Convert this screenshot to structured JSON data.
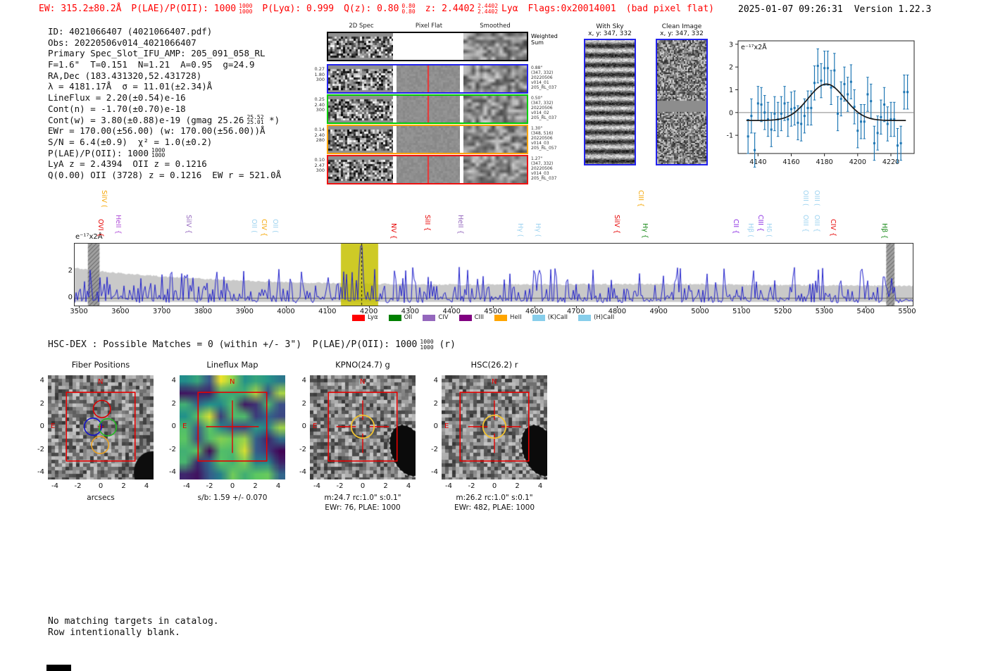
{
  "header": {
    "accent_color": "#ff0000",
    "ew": "EW: 315.2±80.2Å",
    "plae": {
      "label": "P(LAE)/P(OII): 1000",
      "hi": "1000",
      "lo": "1000"
    },
    "plya": "P(Lyα): 0.999",
    "qz": {
      "label": "Q(z): 0.80",
      "hi": "0.80",
      "lo": "0.80"
    },
    "z": {
      "label": "z: 2.4402",
      "hi": "2.4402",
      "lo": "2.4402",
      "suffix": "Lyα"
    },
    "flags": "Flags:0x20014001",
    "flag_note": "(bad pixel flat)",
    "timestamp": "2025-01-07 09:26:31",
    "version": "Version 1.22.3"
  },
  "info": {
    "lines": [
      {
        "text": "ID: 4021066407 (4021066407.pdf)"
      },
      {
        "text": "Obs: 20220506v014_4021066407"
      },
      {
        "text": "Primary Spec_Slot_IFU_AMP: 205_091_058_RL"
      },
      {
        "text": "F=1.6\"  T=0.151  N=1.21  A=0.95  g=24.9"
      },
      {
        "text": "RA,Dec (183.431320,52.431728)"
      },
      {
        "text": "λ = 4181.17Å  σ = 11.01(±2.34)Å"
      },
      {
        "text": "LineFlux = 2.20(±0.54)e-16"
      },
      {
        "text": "Cont(n) = -1.70(±0.70)e-18"
      },
      {
        "pre": "Cont(w) = 3.80(±0.88)e-19 (gmag 25.26",
        "hi": "25.52",
        "lo": "25.01",
        "post": " *)"
      },
      {
        "text": "EWr = 170.00(±56.00) (w: 170.00(±56.00))Å"
      },
      {
        "text": "S/N = 6.4(±0.9)  χ² = 1.0(±0.2)"
      },
      {
        "pre": "P(LAE)/P(OII): 1000",
        "hi": "1000",
        "lo": "1000",
        "post": ""
      },
      {
        "text": "LyA z = 2.4394  OII z = 0.1216"
      },
      {
        "text": "Q(0.00) OII (3728) z = 0.1216  EW r = 521.0Å"
      }
    ]
  },
  "spec2d": {
    "headers": [
      "2D Spec",
      "Pixel Flat",
      "Smoothed"
    ],
    "rows": [
      {
        "name": "weighted-sum",
        "color": "#000000",
        "left": [],
        "right": [
          "Weighted",
          "Sum"
        ],
        "red_line": false,
        "flat_white": true
      },
      {
        "name": "fiber-1",
        "color": "#2222ee",
        "left": [
          "0.27",
          "1.80",
          "300"
        ],
        "right": [
          "0.88\"",
          "(347, 332)",
          "20220506",
          "v014_01",
          "205_RL_037"
        ],
        "red_line": true,
        "flat_white": false
      },
      {
        "name": "fiber-2",
        "color": "#00cc00",
        "left": [
          "0.25",
          "2.40",
          "300"
        ],
        "right": [
          "0.50\"",
          "(347, 332)",
          "20220506",
          "v014_02",
          "205_RL_037"
        ],
        "red_line": true,
        "flat_white": false
      },
      {
        "name": "fiber-3",
        "color": "#ffa500",
        "left": [
          "0.14",
          "2.40",
          "280"
        ],
        "right": [
          "1.30\"",
          "(348, 516)",
          "20220506",
          "v014_03",
          "205_RL_057"
        ],
        "red_line": false,
        "flat_white": false
      },
      {
        "name": "fiber-4",
        "color": "#ee1111",
        "left": [
          "0.10",
          "2.47",
          "300"
        ],
        "right": [
          "1.27\"",
          "(347, 332)",
          "20220506",
          "v014_03",
          "205_RL_037"
        ],
        "red_line": true,
        "flat_white": false
      }
    ]
  },
  "sky_panels": [
    {
      "title": "With Sky",
      "subtitle": "x, y: 347, 332",
      "border": "#2222ee",
      "type": "stripes"
    },
    {
      "title": "Clean Image",
      "subtitle": "x, y: 347, 332",
      "border": "#2222ee",
      "type": "clean"
    }
  ],
  "hsc_dex": {
    "pre": "HSC-DEX : Possible Matches = 0 (within +/- 3\")  P(LAE)/P(OII): 1000",
    "hi": "1000",
    "lo": "1000",
    "post": " (r)"
  },
  "cutouts": {
    "xticks": [
      -4,
      -2,
      0,
      2,
      4
    ],
    "yticks": [
      4,
      2,
      0,
      -2,
      -4
    ],
    "compass_n": "N",
    "compass_e": "E",
    "aperture_color": "#f2c431",
    "box_color": "#e60000",
    "panels": [
      {
        "title": "Fiber Positions",
        "xlabel": "arcsecs",
        "captions": [],
        "type": "fibers",
        "fibers": [
          {
            "dx": 0.1,
            "dy": 1.55,
            "color": "#dd0000"
          },
          {
            "dx": -0.68,
            "dy": 0.0,
            "color": "#1111cc"
          },
          {
            "dx": 0.62,
            "dy": -0.05,
            "color": "#22bb22"
          },
          {
            "dx": -0.05,
            "dy": -1.6,
            "color": "#e8a020"
          }
        ]
      },
      {
        "title": "Lineflux Map",
        "xlabel": "",
        "captions": [
          "s/b: 1.59 +/- 0.070"
        ],
        "type": "viridis"
      },
      {
        "title": "KPNO(24.7) g",
        "xlabel": "",
        "captions": [
          "m:24.7 rc:1.0\"  s:0.1\"",
          "EWr: 76, PLAE: 1000"
        ],
        "type": "aperture"
      },
      {
        "title": "HSC(26.2) r",
        "xlabel": "",
        "captions": [
          "m:26.2 rc:1.0\"  s:0.1\"",
          "EWr: 482, PLAE: 1000"
        ],
        "type": "aperture"
      }
    ]
  },
  "footer": {
    "lines": [
      "No matching targets in catalog.",
      "Row intentionally blank."
    ]
  },
  "chart_data": [
    {
      "id": "line_fit_zoom",
      "type": "scatter",
      "title": "",
      "in_plot_label": "e⁻¹⁷x2Å",
      "xlim": [
        4128,
        4234
      ],
      "ylim": [
        -1.8,
        3.15
      ],
      "xticks": [
        4140,
        4160,
        4180,
        4200,
        4220
      ],
      "yticks": [
        -1,
        0,
        1,
        2,
        3
      ],
      "zero_line": true,
      "series": [
        {
          "name": "spectrum-points",
          "style": "errorbar",
          "color": "#1f77b4",
          "yerr": 0.75,
          "x": [
            4134,
            4136,
            4138,
            4140,
            4142,
            4144,
            4146,
            4148,
            4150,
            4152,
            4154,
            4156,
            4158,
            4160,
            4162,
            4164,
            4166,
            4168,
            4170,
            4172,
            4174,
            4176,
            4178,
            4180,
            4182,
            4184,
            4186,
            4188,
            4190,
            4192,
            4194,
            4196,
            4198,
            4200,
            4202,
            4204,
            4206,
            4208,
            4210,
            4212,
            4214,
            4216,
            4218,
            4220,
            4222,
            4224,
            4226,
            4228,
            4230
          ],
          "y": [
            -1.05,
            -0.15,
            -1.65,
            0.4,
            0.35,
            0.0,
            -0.3,
            -0.75,
            -0.05,
            -0.3,
            -0.05,
            0.4,
            -0.3,
            0.15,
            0.2,
            -0.45,
            -0.5,
            -0.15,
            0.2,
            0.2,
            1.3,
            2.05,
            1.4,
            1.95,
            1.95,
            1.1,
            1.85,
            -0.05,
            0.6,
            1.25,
            0.8,
            1.35,
            0.25,
            -0.8,
            -0.4,
            -0.4,
            0.8,
            0.5,
            -1.35,
            -0.9,
            -0.2,
            0.35,
            -0.5,
            -0.3,
            -0.3,
            -1.45,
            -1.35,
            0.9,
            0.9
          ]
        },
        {
          "name": "gaussian-fit",
          "style": "line",
          "color": "#1a1a1a",
          "params": {
            "center": 4181.17,
            "sigma": 11.01,
            "peak": 1.25,
            "baseline": -0.35
          }
        }
      ]
    },
    {
      "id": "full_spectrum",
      "type": "line",
      "in_plot_label": "e⁻¹⁷x2Å",
      "xlim": [
        3488,
        5512
      ],
      "ylim": [
        -0.55,
        4.08
      ],
      "xticks": [
        3500,
        3600,
        3700,
        3800,
        3900,
        4000,
        4100,
        4200,
        4300,
        4400,
        4500,
        4600,
        4700,
        4800,
        4900,
        5000,
        5100,
        5200,
        5300,
        5400,
        5500
      ],
      "yticks": [
        0,
        2
      ],
      "spectrum_color": "#2222cc",
      "error_band_color": "#c9c9c9",
      "detection": {
        "wavelength": 4181.17
      },
      "highlight_band": {
        "x0": 4131,
        "x1": 4221,
        "color": "rgba(197,193,0,0.85)"
      },
      "masked_bands": [
        {
          "x0": 3520,
          "x1": 3548
        },
        {
          "x0": 5448,
          "x1": 5468
        }
      ],
      "series_note": "noisy blue flux spectrum with gray 1-sigma envelope; emission line detected at 4181.17 Å",
      "legend": [
        {
          "label": "Lyα",
          "color": "#ff0000"
        },
        {
          "label": "OII",
          "color": "#008000"
        },
        {
          "label": "CIV",
          "color": "#9467bd"
        },
        {
          "label": "CIII",
          "color": "#800080"
        },
        {
          "label": "HeII",
          "color": "#ffa500"
        },
        {
          "label": "(K)CaII",
          "color": "#87ceeb"
        },
        {
          "label": "(H)CaII",
          "color": "#87ceeb"
        }
      ],
      "line_labels": [
        {
          "wl": 3553,
          "text": "OVI {",
          "color": "#e60000",
          "tier": 0
        },
        {
          "wl": 3561,
          "text": "SiIV (",
          "color": "#f5a500",
          "tier": 1
        },
        {
          "wl": 3595,
          "text": "HeII {",
          "color": "#b04fd8",
          "tier": 0
        },
        {
          "wl": 3765,
          "text": "SiIV {",
          "color": "#9467bd",
          "tier": 0
        },
        {
          "wl": 3924,
          "text": "OII (",
          "color": "#9ed3f0",
          "tier": 0
        },
        {
          "wl": 3948,
          "text": "CIV {",
          "color": "#f5a500",
          "tier": 0
        },
        {
          "wl": 3974,
          "text": "OII (",
          "color": "#9ed3f0",
          "tier": 0
        },
        {
          "wl": 4261,
          "text": "NV {",
          "color": "#e60000",
          "tier": 0
        },
        {
          "wl": 4342,
          "text": "SiII {",
          "color": "#e60000",
          "tier": 0
        },
        {
          "wl": 4422,
          "text": "HeII {",
          "color": "#9467bd",
          "tier": 0
        },
        {
          "wl": 4566,
          "text": "Hγ (",
          "color": "#9ed3f0",
          "tier": 0
        },
        {
          "wl": 4609,
          "text": "Hγ (",
          "color": "#9ed3f0",
          "tier": 0
        },
        {
          "wl": 4799,
          "text": "SiIV {",
          "color": "#e60000",
          "tier": 0
        },
        {
          "wl": 4858,
          "text": "CIII {",
          "color": "#f5a500",
          "tier": 1
        },
        {
          "wl": 4867,
          "text": "Hγ {",
          "color": "#1a8a1a",
          "tier": 0
        },
        {
          "wl": 5087,
          "text": "CII {",
          "color": "#8a2be2",
          "tier": 0
        },
        {
          "wl": 5123,
          "text": "Hβ (",
          "color": "#9ed3f0",
          "tier": 0
        },
        {
          "wl": 5147,
          "text": "CIII {",
          "color": "#8a2be2",
          "tier": 0
        },
        {
          "wl": 5167,
          "text": "Hδ (",
          "color": "#9ed3f0",
          "tier": 0
        },
        {
          "wl": 5255,
          "text": "OIII (",
          "color": "#9ed3f0",
          "tier": 1
        },
        {
          "wl": 5282,
          "text": "OIII (",
          "color": "#9ed3f0",
          "tier": 1
        },
        {
          "wl": 5255,
          "text": "OIII {",
          "color": "#9ed3f0",
          "tier": 0
        },
        {
          "wl": 5282,
          "text": "OIII {",
          "color": "#9ed3f0",
          "tier": 0
        },
        {
          "wl": 5321,
          "text": "CIV {",
          "color": "#e60000",
          "tier": 0
        },
        {
          "wl": 5445,
          "text": "Hβ {",
          "color": "#1a8a1a",
          "tier": 0
        }
      ]
    }
  ]
}
